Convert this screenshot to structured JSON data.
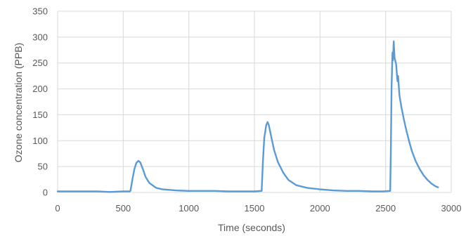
{
  "chart_data": {
    "type": "line",
    "title": "",
    "xlabel": "Time (seconds)",
    "ylabel": "Ozone concentration (PPB)",
    "xlim": [
      0,
      3000
    ],
    "ylim": [
      0,
      350
    ],
    "xticks": [
      0,
      500,
      1000,
      1500,
      2000,
      2500,
      3000
    ],
    "yticks": [
      0,
      50,
      100,
      150,
      200,
      250,
      300,
      350
    ],
    "grid": true,
    "legend": "none",
    "series": [
      {
        "color": "#5b9bd5",
        "points": [
          [
            0,
            2
          ],
          [
            100,
            2
          ],
          [
            200,
            2
          ],
          [
            300,
            2
          ],
          [
            400,
            1
          ],
          [
            500,
            2
          ],
          [
            550,
            2
          ],
          [
            555,
            3
          ],
          [
            570,
            25
          ],
          [
            585,
            45
          ],
          [
            600,
            57
          ],
          [
            615,
            61
          ],
          [
            630,
            58
          ],
          [
            650,
            45
          ],
          [
            670,
            30
          ],
          [
            700,
            18
          ],
          [
            750,
            9
          ],
          [
            800,
            6
          ],
          [
            900,
            4
          ],
          [
            1000,
            3
          ],
          [
            1100,
            3
          ],
          [
            1200,
            3
          ],
          [
            1300,
            2
          ],
          [
            1400,
            2
          ],
          [
            1500,
            2
          ],
          [
            1555,
            3
          ],
          [
            1565,
            60
          ],
          [
            1575,
            105
          ],
          [
            1590,
            130
          ],
          [
            1600,
            136
          ],
          [
            1610,
            130
          ],
          [
            1630,
            105
          ],
          [
            1650,
            82
          ],
          [
            1680,
            58
          ],
          [
            1720,
            38
          ],
          [
            1760,
            24
          ],
          [
            1820,
            14
          ],
          [
            1900,
            9
          ],
          [
            2000,
            6
          ],
          [
            2100,
            4
          ],
          [
            2200,
            3
          ],
          [
            2300,
            3
          ],
          [
            2400,
            2
          ],
          [
            2480,
            2
          ],
          [
            2535,
            3
          ],
          [
            2540,
            80
          ],
          [
            2545,
            200
          ],
          [
            2552,
            270
          ],
          [
            2556,
            255
          ],
          [
            2562,
            292
          ],
          [
            2568,
            260
          ],
          [
            2580,
            248
          ],
          [
            2590,
            215
          ],
          [
            2595,
            225
          ],
          [
            2605,
            188
          ],
          [
            2620,
            165
          ],
          [
            2640,
            140
          ],
          [
            2660,
            118
          ],
          [
            2680,
            98
          ],
          [
            2700,
            80
          ],
          [
            2730,
            60
          ],
          [
            2760,
            45
          ],
          [
            2790,
            33
          ],
          [
            2820,
            24
          ],
          [
            2850,
            17
          ],
          [
            2880,
            12
          ],
          [
            2900,
            10
          ]
        ]
      }
    ]
  }
}
